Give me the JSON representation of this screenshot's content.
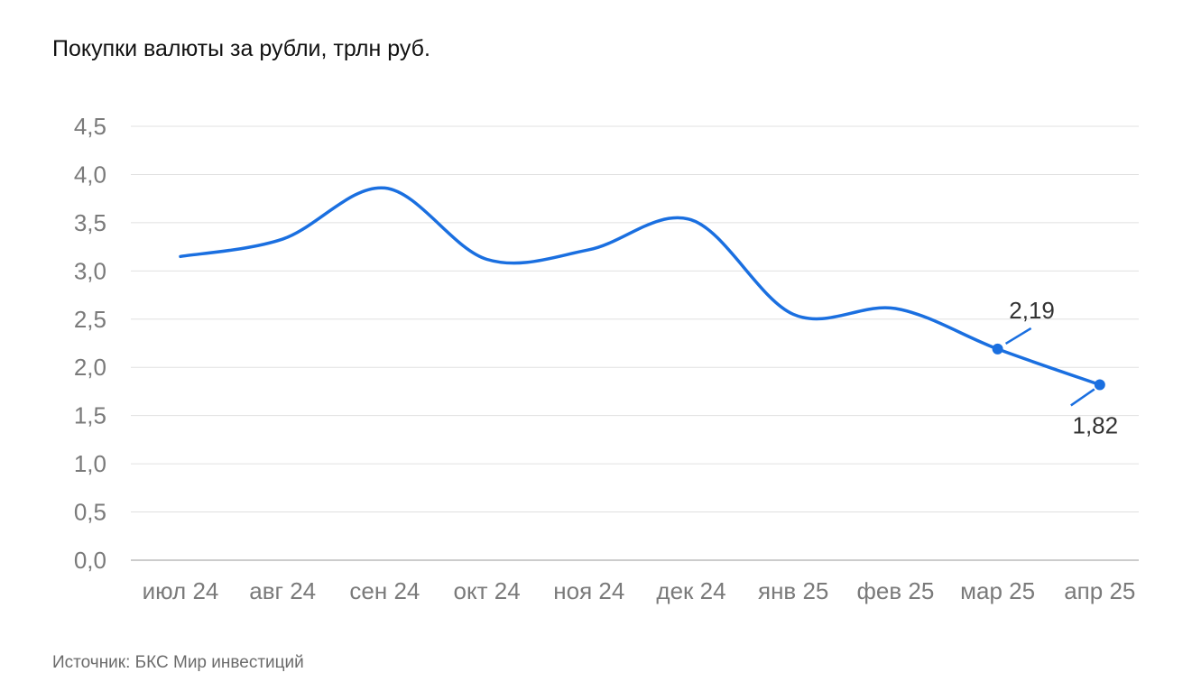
{
  "title": "Покупки валюты за рубли, трлн руб.",
  "source": "Источник: БКС Мир инвестиций",
  "colors": {
    "line": "#1a6fe0",
    "grid": "#e0e0e0",
    "axis": "#cccccc",
    "tick_text": "#7a7a7a",
    "label_text": "#333333"
  },
  "chart_data": {
    "type": "line",
    "title": "Покупки валюты за рубли, трлн руб.",
    "xlabel": "",
    "ylabel": "",
    "categories": [
      "июл 24",
      "авг 24",
      "сен 24",
      "окт 24",
      "ноя 24",
      "дек 24",
      "янв 25",
      "фев 25",
      "мар 25",
      "апр 25"
    ],
    "series": [
      {
        "values": [
          3.15,
          3.33,
          3.86,
          3.12,
          3.22,
          3.53,
          2.55,
          2.61,
          2.19,
          1.82
        ]
      }
    ],
    "ylim": [
      0,
      4.5
    ],
    "yticks": [
      0,
      0.5,
      1,
      1.5,
      2,
      2.5,
      3,
      3.5,
      4,
      4.5
    ],
    "ytick_labels": [
      "0,0",
      "0,5",
      "1,0",
      "1,5",
      "2,0",
      "2,5",
      "3,0",
      "3,5",
      "4,0",
      "4,5"
    ],
    "grid": true,
    "legend": "none",
    "annotations": [
      {
        "category": "мар 25",
        "value": 2.19,
        "text": "2,19",
        "position": "above"
      },
      {
        "category": "апр 25",
        "value": 1.82,
        "text": "1,82",
        "position": "below"
      }
    ]
  }
}
